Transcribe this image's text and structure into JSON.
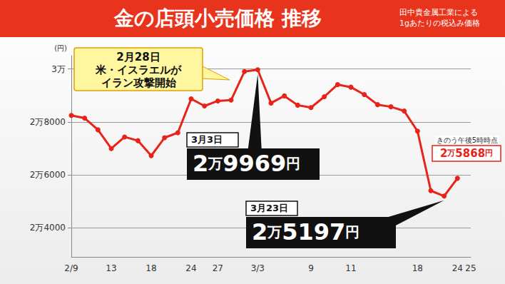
{
  "chart_data": {
    "type": "line",
    "title": "金の店頭小売価格 推移",
    "subtitle": [
      "田中貴金属工業による",
      "1gあたりの税込み価格"
    ],
    "ylabel": "(円)",
    "categories": [
      "2/9",
      null,
      null,
      "13",
      null,
      null,
      "18",
      null,
      null,
      "24",
      null,
      "27",
      null,
      null,
      "3/3",
      null,
      null,
      null,
      "9",
      null,
      null,
      "11",
      null,
      null,
      null,
      null,
      "18",
      null,
      null,
      "24",
      "25"
    ],
    "values": [
      28245,
      28140,
      27700,
      26990,
      27430,
      27290,
      26720,
      27400,
      27590,
      28870,
      28600,
      28790,
      28820,
      29900,
      29969,
      28710,
      28980,
      28630,
      28540,
      28950,
      29410,
      29310,
      29030,
      28650,
      28570,
      28410,
      27650,
      25400,
      25197,
      25868,
      null
    ],
    "color": "#e8231a",
    "marker": "circle",
    "ylim": [
      22900,
      30500
    ],
    "yticks": [
      {
        "value": 24000,
        "label": "2万4000"
      },
      {
        "value": 26000,
        "label": "2万6000"
      },
      {
        "value": 28000,
        "label": "2万8000"
      },
      {
        "value": 30000,
        "label": "3万"
      }
    ],
    "grid": true,
    "annotations": [
      {
        "label": "2月28日",
        "text": [
          "米・イスラエルが",
          "イラン攻撃開始"
        ]
      },
      {
        "label": "3月3日",
        "text": "2万9969円",
        "value": 29969
      },
      {
        "label": "3月23日",
        "text": "2万5197円",
        "value": 25197
      },
      {
        "label": "きのう午後5時時点",
        "text": "2万5868円",
        "value": 25868
      }
    ]
  }
}
